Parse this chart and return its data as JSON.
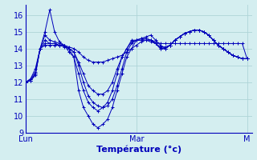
{
  "title": "",
  "xlabel": "Température (°c)",
  "ylabel": "",
  "bg_color": "#d4eef0",
  "grid_color": "#aed4d8",
  "line_color": "#0000bb",
  "xlim": [
    0,
    47
  ],
  "ylim": [
    9,
    16.6
  ],
  "yticks": [
    9,
    10,
    11,
    12,
    13,
    14,
    15,
    16
  ],
  "xtick_positions": [
    0,
    23,
    46
  ],
  "xtick_labels": [
    "Lun",
    "Mar",
    "M"
  ],
  "series": [
    [
      12.0,
      12.1,
      12.5,
      14.0,
      15.0,
      16.3,
      15.0,
      14.4,
      14.2,
      13.8,
      13.5,
      11.5,
      10.5,
      10.0,
      9.5,
      9.3,
      9.5,
      9.8,
      10.5,
      11.5,
      12.5,
      13.5,
      14.0,
      14.5,
      14.6,
      14.7,
      14.8,
      14.5,
      14.2,
      14.0,
      14.2,
      14.5,
      14.7,
      14.9,
      15.0,
      15.1,
      15.1,
      15.0,
      14.8,
      14.5,
      14.2,
      14.0,
      13.8,
      13.6,
      13.5,
      13.4,
      13.4
    ],
    [
      12.0,
      12.1,
      12.5,
      14.0,
      14.8,
      14.5,
      14.4,
      14.3,
      14.2,
      14.0,
      13.5,
      12.5,
      11.5,
      10.8,
      10.5,
      10.3,
      10.5,
      10.8,
      11.5,
      12.5,
      13.5,
      14.0,
      14.5,
      14.5,
      14.6,
      14.6,
      14.5,
      14.3,
      14.0,
      14.0,
      14.2,
      14.5,
      14.7,
      14.9,
      15.0,
      15.1,
      15.1,
      15.0,
      14.8,
      14.5,
      14.2,
      14.0,
      13.8,
      13.6,
      13.5,
      13.4,
      13.4
    ],
    [
      12.0,
      12.2,
      12.6,
      14.0,
      14.5,
      14.3,
      14.3,
      14.2,
      14.2,
      14.0,
      13.8,
      13.0,
      12.0,
      11.2,
      10.8,
      10.6,
      10.5,
      10.6,
      11.0,
      11.8,
      12.8,
      13.8,
      14.3,
      14.5,
      14.5,
      14.6,
      14.5,
      14.3,
      14.0,
      14.0,
      14.2,
      14.5,
      14.7,
      14.9,
      15.0,
      15.1,
      15.1,
      15.0,
      14.8,
      14.5,
      14.2,
      14.0,
      13.8,
      13.6,
      13.5,
      13.4,
      13.4
    ],
    [
      12.0,
      12.2,
      12.8,
      14.0,
      14.2,
      14.2,
      14.2,
      14.2,
      14.2,
      14.1,
      14.0,
      13.8,
      13.5,
      13.3,
      13.2,
      13.2,
      13.2,
      13.3,
      13.4,
      13.5,
      13.6,
      13.8,
      14.0,
      14.2,
      14.4,
      14.5,
      14.5,
      14.4,
      14.3,
      14.3,
      14.3,
      14.3,
      14.3,
      14.3,
      14.3,
      14.3,
      14.3,
      14.3,
      14.3,
      14.3,
      14.3,
      14.3,
      14.3,
      14.3,
      14.3,
      14.3,
      13.4
    ],
    [
      12.0,
      12.1,
      12.4,
      14.0,
      14.3,
      14.3,
      14.3,
      14.2,
      14.1,
      14.0,
      13.8,
      13.2,
      12.5,
      11.8,
      11.5,
      11.3,
      11.3,
      11.5,
      12.0,
      12.8,
      13.5,
      14.0,
      14.4,
      14.5,
      14.5,
      14.5,
      14.4,
      14.3,
      14.1,
      14.1,
      14.2,
      14.5,
      14.7,
      14.9,
      15.0,
      15.1,
      15.1,
      15.0,
      14.8,
      14.5,
      14.2,
      14.0,
      13.8,
      13.6,
      13.5,
      13.4,
      13.4
    ]
  ]
}
